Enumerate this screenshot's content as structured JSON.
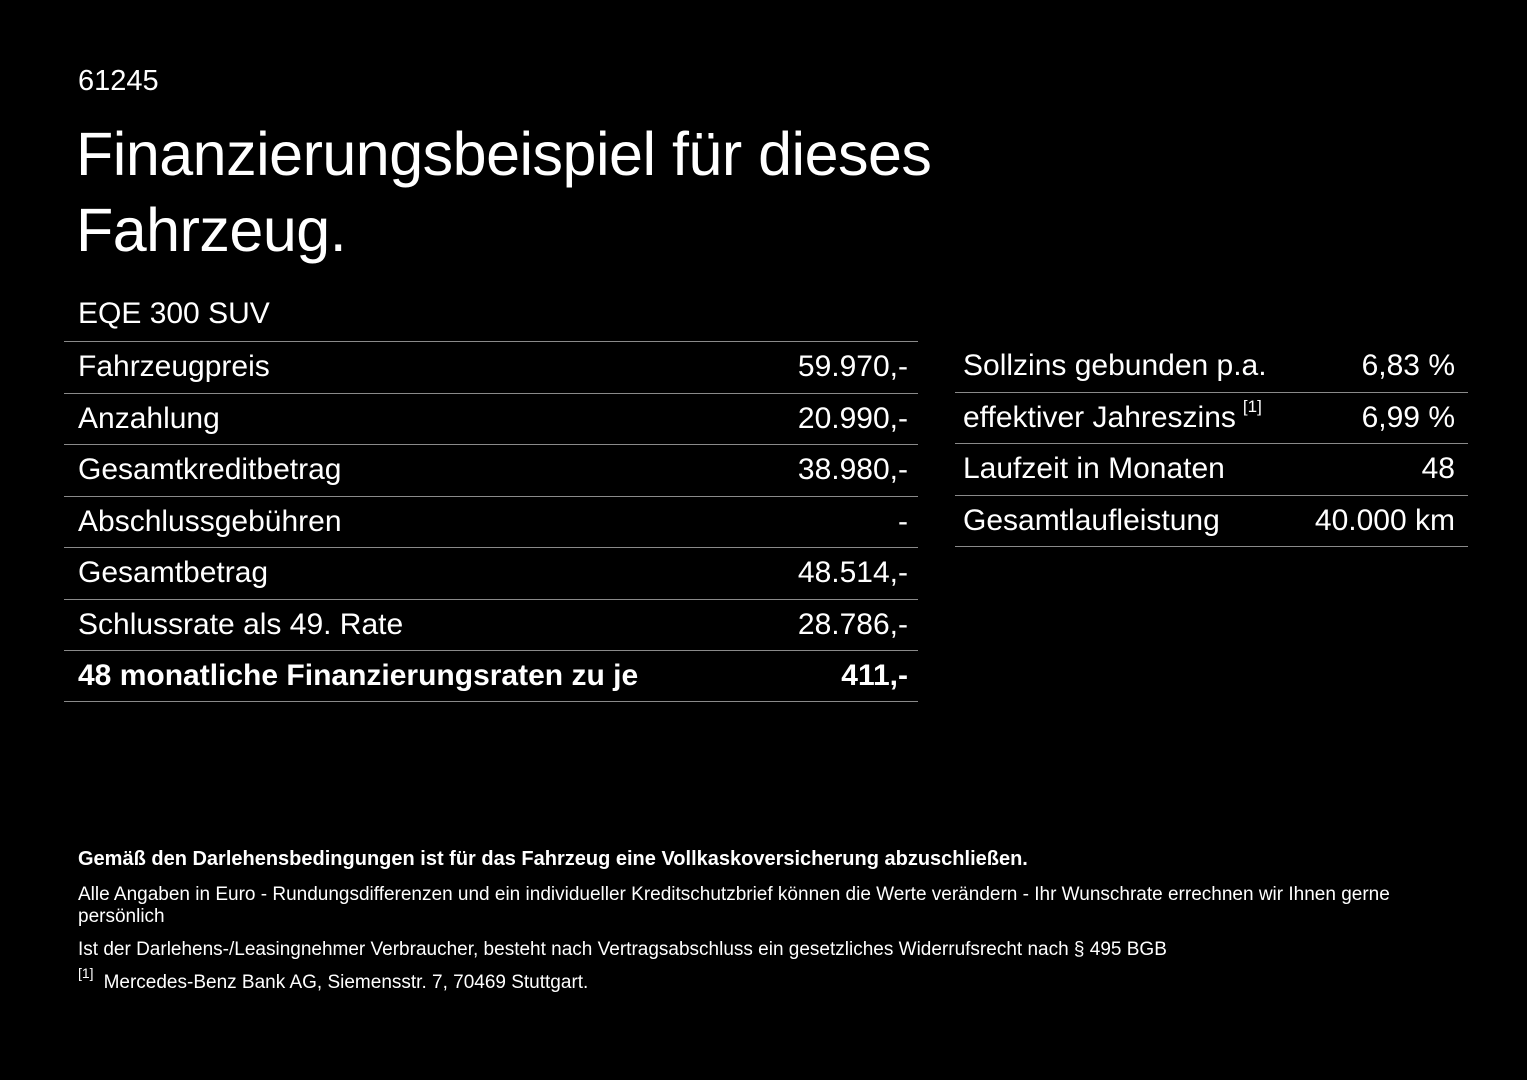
{
  "colors": {
    "background": "#000000",
    "text": "#ffffff",
    "divider": "#8a8a8a"
  },
  "header": {
    "doc_number": "61245",
    "title_line1": "Finanzierungsbeispiel für dieses",
    "title_line2": "Fahrzeug.",
    "vehicle_model": "EQE 300 SUV"
  },
  "finance_table": {
    "rows": [
      {
        "label": "Fahrzeugpreis",
        "value": "59.970,-"
      },
      {
        "label": "Anzahlung",
        "value": "20.990,-"
      },
      {
        "label": "Gesamtkreditbetrag",
        "value": "38.980,-"
      },
      {
        "label": "Abschlussgebühren",
        "value": "-"
      },
      {
        "label": "Gesamtbetrag",
        "value": "48.514,-"
      },
      {
        "label": "Schlussrate als 49. Rate",
        "value": "28.786,-"
      },
      {
        "label": "48 monatliche Finanzierungsraten zu je",
        "value": "411,-",
        "bold": true
      }
    ]
  },
  "conditions_table": {
    "rows": [
      {
        "label": "Sollzins gebunden p.a.",
        "value": "6,83 %"
      },
      {
        "label": "effektiver Jahreszins",
        "footnote": "[1]",
        "value": "6,99 %"
      },
      {
        "label": "Laufzeit in Monaten",
        "value": "48"
      },
      {
        "label": "Gesamtlaufleistung",
        "value": "40.000 km"
      }
    ]
  },
  "footer": {
    "line1": "Gemäß den Darlehensbedingungen ist für das Fahrzeug eine Vollkaskoversicherung abzuschließen.",
    "line2": "Alle Angaben in Euro - Rundungsdifferenzen und ein individueller Kreditschutzbrief können die Werte verändern - Ihr Wunschrate errechnen wir Ihnen gerne persönlich",
    "line3": "Ist der Darlehens-/Leasingnehmer Verbraucher, besteht nach Vertragsabschluss ein gesetzliches Widerrufsrecht nach § 495 BGB",
    "footnote_marker": "[1]",
    "footnote_text": "Mercedes-Benz Bank AG, Siemensstr. 7, 70469 Stuttgart."
  }
}
